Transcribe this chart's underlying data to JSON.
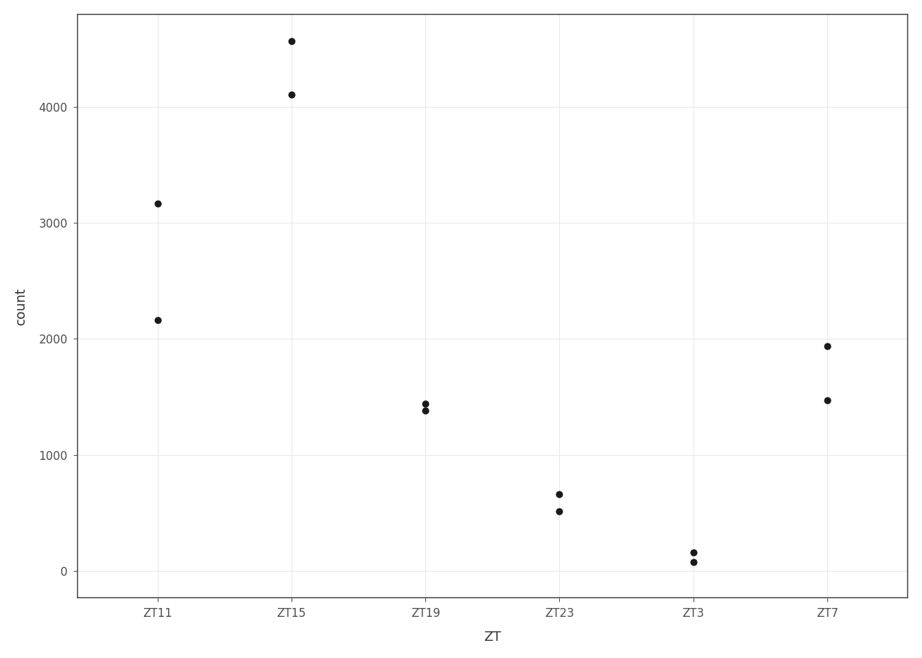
{
  "categories": [
    "ZT11",
    "ZT15",
    "ZT19",
    "ZT23",
    "ZT3",
    "ZT7"
  ],
  "points": {
    "ZT11": [
      3170,
      2160
    ],
    "ZT15": [
      4570,
      4110
    ],
    "ZT19": [
      1380,
      1440
    ],
    "ZT23": [
      660,
      510
    ],
    "ZT3": [
      155,
      75
    ],
    "ZT7": [
      1940,
      1470
    ]
  },
  "xlabel": "ZT",
  "ylabel": "count",
  "ylim": [
    -230,
    4800
  ],
  "yticks": [
    0,
    1000,
    2000,
    3000,
    4000
  ],
  "background_color": "#ffffff",
  "panel_background": "#ffffff",
  "grid_color": "#e8e8e8",
  "dot_color": "#1a1a1a",
  "dot_size": 55,
  "axis_fontsize": 14,
  "tick_fontsize": 12,
  "spine_color": "#4d4d4d",
  "spine_linewidth": 1.2
}
